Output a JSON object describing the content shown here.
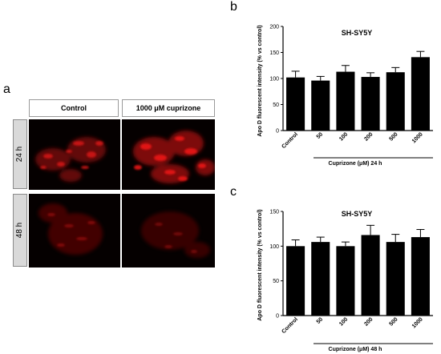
{
  "panel_a": {
    "label": "a",
    "columns": [
      "Control",
      "1000 μM cuprizone"
    ],
    "rows": [
      "24 h",
      "48 h"
    ]
  },
  "panel_b_label": "b",
  "panel_c_label": "c",
  "colors": {
    "bar": "#000000",
    "signal": "#e01010",
    "image_bg": "#050000"
  },
  "chart_data": [
    {
      "type": "bar",
      "title": "SH-SY5Y",
      "ylabel": "Apo D fluorescent intensity (% vs control)",
      "xlabel": "Cuprizone (μM) 24 h",
      "categories": [
        "Control",
        "50",
        "100",
        "200",
        "500",
        "1000"
      ],
      "values": [
        102,
        96,
        113,
        103,
        112,
        141
      ],
      "errors": [
        12,
        8,
        12,
        8,
        9,
        11
      ],
      "ylim": [
        0,
        200
      ],
      "yticks": [
        0,
        50,
        100,
        150,
        200
      ],
      "grid": false
    },
    {
      "type": "bar",
      "title": "SH-SY5Y",
      "ylabel": "Apo D fluorescent intensity (% vs control)",
      "xlabel": "Cuprizone (μM) 48 h",
      "categories": [
        "Control",
        "50",
        "100",
        "200",
        "500",
        "1000"
      ],
      "values": [
        100,
        106,
        100,
        116,
        106,
        113
      ],
      "errors": [
        9,
        7,
        6,
        14,
        11,
        11
      ],
      "ylim": [
        0,
        150
      ],
      "yticks": [
        0,
        50,
        100,
        150
      ],
      "grid": false
    }
  ]
}
